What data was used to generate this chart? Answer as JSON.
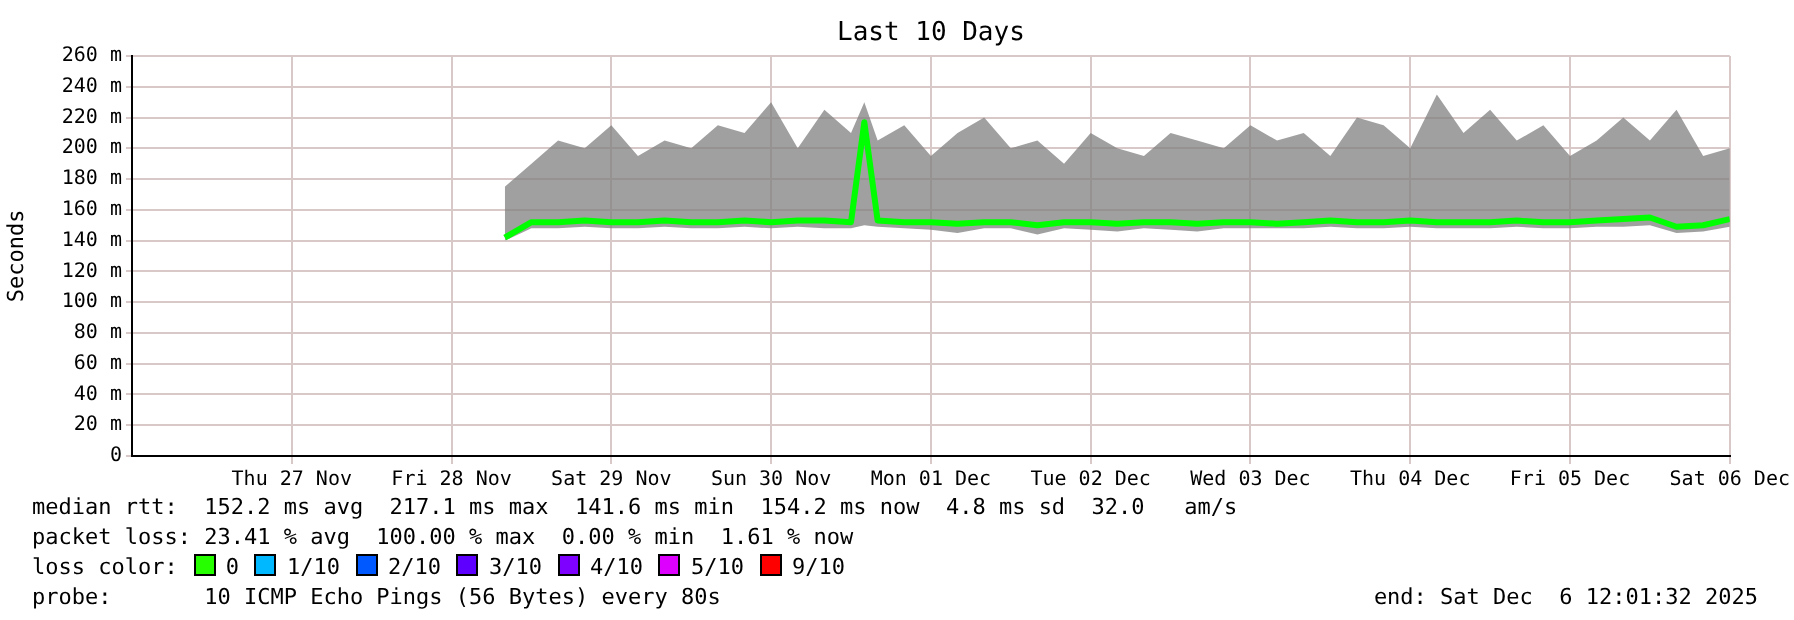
{
  "chart_data": {
    "type": "line",
    "title": "Last 10 Days",
    "ylabel": "Seconds",
    "x": [
      "2025-11-28T20:00",
      "2025-11-29T00:00",
      "2025-11-29T04:00",
      "2025-11-29T08:00",
      "2025-11-29T12:00",
      "2025-11-29T16:00",
      "2025-11-29T20:00",
      "2025-11-30T00:00",
      "2025-11-30T04:00",
      "2025-11-30T08:00",
      "2025-11-30T12:00",
      "2025-11-30T16:00",
      "2025-11-30T20:00",
      "2025-12-01T00:00",
      "2025-12-01T02:00",
      "2025-12-01T04:00",
      "2025-12-01T08:00",
      "2025-12-01T12:00",
      "2025-12-01T16:00",
      "2025-12-01T20:00",
      "2025-12-02T00:00",
      "2025-12-02T04:00",
      "2025-12-02T08:00",
      "2025-12-02T12:00",
      "2025-12-02T16:00",
      "2025-12-02T20:00",
      "2025-12-03T00:00",
      "2025-12-03T04:00",
      "2025-12-03T08:00",
      "2025-12-03T12:00",
      "2025-12-03T16:00",
      "2025-12-03T20:00",
      "2025-12-04T00:00",
      "2025-12-04T04:00",
      "2025-12-04T08:00",
      "2025-12-04T12:00",
      "2025-12-04T16:00",
      "2025-12-04T20:00",
      "2025-12-05T00:00",
      "2025-12-05T04:00",
      "2025-12-05T08:00",
      "2025-12-05T12:00",
      "2025-12-05T16:00",
      "2025-12-05T20:00",
      "2025-12-06T00:00",
      "2025-12-06T04:00",
      "2025-12-06T08:00",
      "2025-12-06T12:00"
    ],
    "series": [
      {
        "color": "#00ff00",
        "values": [
          142,
          152,
          152,
          153,
          152,
          152,
          153,
          152,
          152,
          153,
          152,
          153,
          153,
          152,
          217,
          153,
          152,
          152,
          151,
          152,
          152,
          150,
          152,
          152,
          151,
          152,
          152,
          151,
          152,
          152,
          151,
          152,
          153,
          152,
          152,
          153,
          152,
          152,
          152,
          153,
          152,
          152,
          153,
          154,
          155,
          149,
          150,
          154
        ],
        "lower": [
          140,
          148,
          148,
          149,
          148,
          148,
          149,
          148,
          148,
          149,
          148,
          149,
          148,
          148,
          150,
          149,
          148,
          147,
          145,
          148,
          148,
          144,
          148,
          147,
          146,
          148,
          147,
          146,
          148,
          148,
          148,
          148,
          149,
          148,
          148,
          149,
          148,
          148,
          148,
          149,
          148,
          148,
          149,
          149,
          150,
          145,
          146,
          149
        ],
        "upper": [
          175,
          190,
          205,
          200,
          215,
          195,
          205,
          200,
          215,
          210,
          230,
          200,
          225,
          210,
          230,
          205,
          215,
          195,
          210,
          220,
          200,
          205,
          190,
          210,
          200,
          195,
          210,
          205,
          200,
          215,
          205,
          210,
          195,
          220,
          215,
          200,
          235,
          210,
          225,
          205,
          215,
          195,
          205,
          220,
          205,
          225,
          195,
          200
        ]
      }
    ],
    "xlim": [
      "2025-11-26T12:00",
      "2025-12-06T12:00"
    ],
    "xticks": [
      {
        "value": "2025-11-27T12:00",
        "label": "Thu 27 Nov"
      },
      {
        "value": "2025-11-28T12:00",
        "label": "Fri 28 Nov"
      },
      {
        "value": "2025-11-29T12:00",
        "label": "Sat 29 Nov"
      },
      {
        "value": "2025-11-30T12:00",
        "label": "Sun 30 Nov"
      },
      {
        "value": "2025-12-01T12:00",
        "label": "Mon 01 Dec"
      },
      {
        "value": "2025-12-02T12:00",
        "label": "Tue 02 Dec"
      },
      {
        "value": "2025-12-03T12:00",
        "label": "Wed 03 Dec"
      },
      {
        "value": "2025-12-04T12:00",
        "label": "Thu 04 Dec"
      },
      {
        "value": "2025-12-05T12:00",
        "label": "Fri 05 Dec"
      },
      {
        "value": "2025-12-06T12:00",
        "label": "Sat 06 Dec"
      }
    ],
    "ylim": [
      0,
      260
    ],
    "yticks": [
      {
        "value": 0,
        "label": "0"
      },
      {
        "value": 20,
        "label": "20 m"
      },
      {
        "value": 40,
        "label": "40 m"
      },
      {
        "value": 60,
        "label": "60 m"
      },
      {
        "value": 80,
        "label": "80 m"
      },
      {
        "value": 100,
        "label": "100 m"
      },
      {
        "value": 120,
        "label": "120 m"
      },
      {
        "value": 140,
        "label": "140 m"
      },
      {
        "value": 160,
        "label": "160 m"
      },
      {
        "value": 180,
        "label": "180 m"
      },
      {
        "value": 200,
        "label": "200 m"
      },
      {
        "value": 220,
        "label": "220 m"
      },
      {
        "value": 240,
        "label": "240 m"
      },
      {
        "value": 260,
        "label": "260 m"
      }
    ],
    "grid": true,
    "marker": "none",
    "line_style": "solid",
    "annotations": [
      "median rtt:  152.2 ms avg  217.1 ms max  141.6 ms min  154.2 ms now  4.8 ms sd  32.0   am/s",
      "packet loss: 23.41 % avg  100.00 % max  0.00 % min  1.61 % now",
      "loss color:",
      "0",
      "1/10",
      "2/10",
      "3/10",
      "4/10",
      "5/10",
      "9/10",
      "probe:       10 ICMP Echo Pings (56 Bytes) every 80s",
      "end: Sat Dec  6 12:01:32 2025"
    ]
  }
}
